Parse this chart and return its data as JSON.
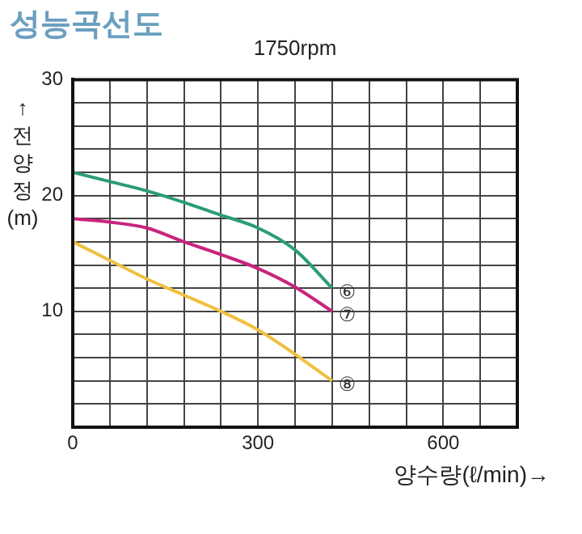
{
  "chart_data": {
    "type": "line",
    "title": "성능곡선도",
    "subtitle": "1750rpm",
    "xlabel": "양수량(ℓ/min)→",
    "ylabel": "↑전양정(m)",
    "x": [
      0,
      60,
      120,
      180,
      240,
      300,
      360,
      420
    ],
    "series": [
      {
        "name": "⑥",
        "color": "#2a9d74",
        "values": [
          22,
          21.2,
          20.4,
          19.4,
          18.3,
          17.2,
          15.3,
          12
        ]
      },
      {
        "name": "⑦",
        "color": "#c8247e",
        "values": [
          18,
          17.7,
          17.2,
          16,
          14.9,
          13.7,
          12.1,
          10
        ]
      },
      {
        "name": "⑧",
        "color": "#f0c040",
        "values": [
          16,
          14.4,
          12.8,
          11.4,
          10,
          8.4,
          6.3,
          4
        ]
      }
    ],
    "xlim": [
      0,
      720
    ],
    "xticks": [
      0,
      {
        "value": 60,
        "label": null
      },
      {
        "value": 120,
        "label": null
      },
      {
        "value": 180,
        "label": null
      },
      {
        "value": 240,
        "label": null
      },
      300,
      {
        "value": 360,
        "label": null
      },
      {
        "value": 420,
        "label": null
      },
      {
        "value": 480,
        "label": null
      },
      {
        "value": 540,
        "label": null
      },
      600,
      {
        "value": 660,
        "label": null
      },
      {
        "value": 720,
        "label": null
      }
    ],
    "ylim": [
      0,
      30
    ],
    "yticks": [
      {
        "value": 0,
        "label": null
      },
      {
        "value": 2,
        "label": null
      },
      {
        "value": 4,
        "label": null
      },
      {
        "value": 6,
        "label": null
      },
      {
        "value": 8,
        "label": null
      },
      10,
      {
        "value": 12,
        "label": null
      },
      {
        "value": 14,
        "label": null
      },
      {
        "value": 16,
        "label": null
      },
      {
        "value": 18,
        "label": null
      },
      20,
      {
        "value": 22,
        "label": null
      },
      {
        "value": 24,
        "label": null
      },
      {
        "value": 26,
        "label": null
      },
      {
        "value": 28,
        "label": null
      },
      30
    ],
    "grid": true,
    "legend": false,
    "marker": "none",
    "line_style": "solid"
  }
}
